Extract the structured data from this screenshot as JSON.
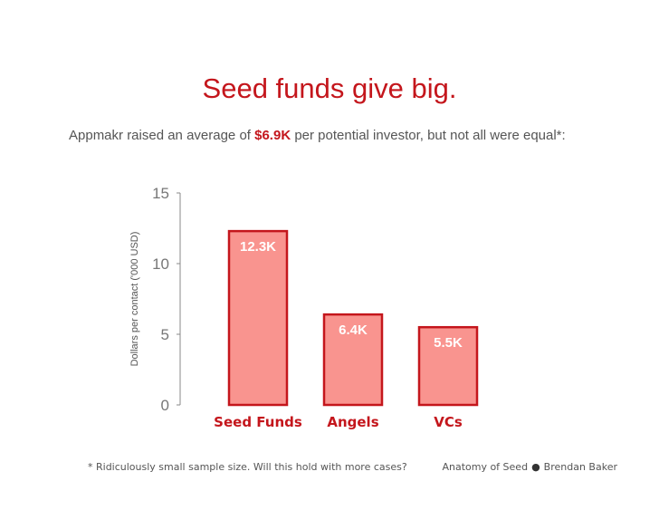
{
  "slide": {
    "title": "Seed funds give big.",
    "subtitle_pre": "Appmakr raised an average of ",
    "subtitle_highlight": "$6.9K",
    "subtitle_post": " per potential investor, but not all were equal*:",
    "footnote": "* Ridiculously small sample size. Will this hold with more cases?",
    "credit_left": "Anatomy of Seed",
    "credit_sep": "●",
    "credit_right": "Brendan Baker"
  },
  "colors": {
    "accent": "#c4161c",
    "bar_fill": "#f9948f",
    "bar_stroke": "#c4161c",
    "axis": "#888888",
    "text": "#555555"
  },
  "chart_data": {
    "type": "bar",
    "categories": [
      "Seed Funds",
      "Angels",
      "VCs"
    ],
    "values": [
      12.3,
      6.4,
      5.5
    ],
    "data_labels": [
      "12.3K",
      "6.4K",
      "5.5K"
    ],
    "ylabel": "Dollars per contact ('000 USD)",
    "xlabel": "",
    "ylim": [
      0,
      15
    ],
    "yticks": [
      0,
      5,
      10,
      15
    ],
    "grid": false
  }
}
